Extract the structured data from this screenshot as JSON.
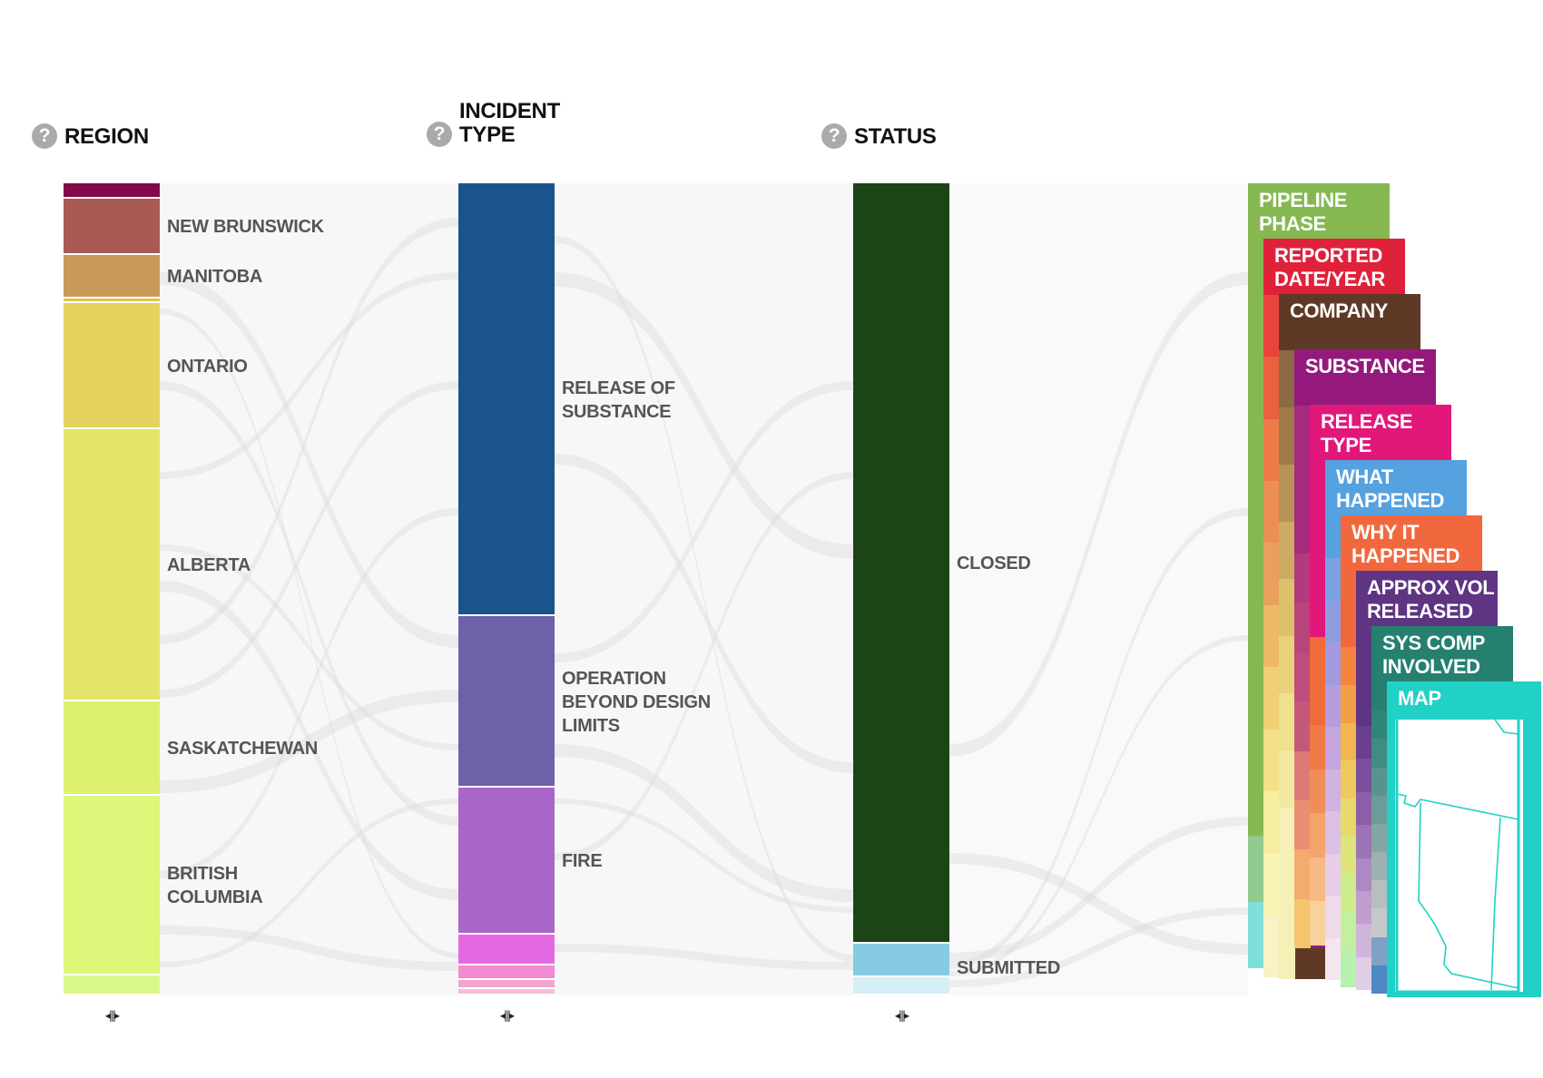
{
  "columns": [
    {
      "id": "region",
      "title": "REGION",
      "help_icon": "question-circle-icon",
      "segments": [
        {
          "label": "",
          "color": "#820a4a"
        },
        {
          "label": "NEW BRUNSWICK",
          "color": "#aa5a55"
        },
        {
          "label": "MANITOBA",
          "color": "#c9995a"
        },
        {
          "label": "",
          "color": "#dcc55a"
        },
        {
          "label": "ONTARIO",
          "color": "#e4d45f"
        },
        {
          "label": "ALBERTA",
          "color": "#e5e46a"
        },
        {
          "label": "SASKATCHEWAN",
          "color": "#def06f"
        },
        {
          "label": "BRITISH\nCOLUMBIA",
          "color": "#dcf77a"
        },
        {
          "label": "",
          "color": "#d9f88a"
        }
      ],
      "handle": "drag-handle-icon"
    },
    {
      "id": "incident_type",
      "title": "INCIDENT\nTYPE",
      "help_icon": "question-circle-icon",
      "segments": [
        {
          "label": "RELEASE OF\nSUBSTANCE",
          "color": "#1a548c"
        },
        {
          "label": "OPERATION\nBEYOND DESIGN\nLIMITS",
          "color": "#6f60aa"
        },
        {
          "label": "FIRE",
          "color": "#a966c9"
        },
        {
          "label": "",
          "color": "#e46ae4"
        },
        {
          "label": "",
          "color": "#f28ad4"
        },
        {
          "label": "",
          "color": "#f4a4cf"
        },
        {
          "label": "",
          "color": "#f6bcd8"
        }
      ],
      "handle": "drag-handle-icon"
    },
    {
      "id": "status",
      "title": "STATUS",
      "help_icon": "question-circle-icon",
      "segments": [
        {
          "label": "CLOSED",
          "color": "#1b4515"
        },
        {
          "label": "SUBMITTED",
          "color": "#86cbe3"
        },
        {
          "label": "",
          "color": "#d4eff8"
        }
      ],
      "handle": "drag-handle-icon"
    }
  ],
  "stack_cards": [
    {
      "title": "PIPELINE\nPHASE",
      "color": "#86b852"
    },
    {
      "title": "REPORTED\nDATE/YEAR",
      "color": "#e0213a"
    },
    {
      "title": "COMPANY",
      "color": "#5e3a26"
    },
    {
      "title": "SUBSTANCE",
      "color": "#95197c"
    },
    {
      "title": "RELEASE TYPE",
      "color": "#e2177a"
    },
    {
      "title": "WHAT\nHAPPENED",
      "color": "#56a1e0"
    },
    {
      "title": "WHY IT\nHAPPENED",
      "color": "#f2683e"
    },
    {
      "title": "APPROX VOL\nRELEASED",
      "color": "#5e3483"
    },
    {
      "title": "SYS COMP\nINVOLVED",
      "color": "#258070"
    },
    {
      "title": "MAP",
      "color": "#21d1c6"
    }
  ]
}
